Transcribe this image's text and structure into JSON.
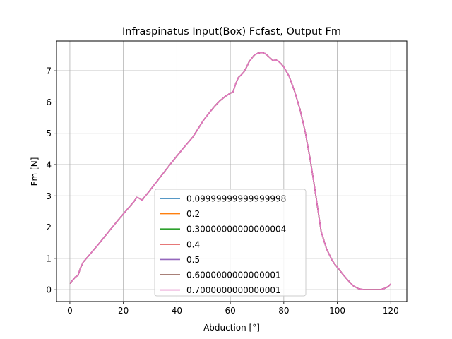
{
  "chart_data": {
    "type": "line",
    "title": "Infraspinatus Input(Box) Fcfast, Output Fm",
    "xlabel": "Abduction [°]",
    "ylabel": "Fm [N]",
    "xlim": [
      -5,
      126
    ],
    "ylim": [
      -0.38,
      7.95
    ],
    "x_ticks": [
      0,
      20,
      40,
      60,
      80,
      100,
      120
    ],
    "y_ticks": [
      0,
      1,
      2,
      3,
      4,
      5,
      6,
      7
    ],
    "grid": true,
    "legend_position": "lower center",
    "x": [
      0,
      1,
      2,
      3,
      4,
      5,
      6,
      8,
      10,
      12,
      14,
      16,
      18,
      20,
      22,
      24,
      25,
      26,
      27,
      28,
      30,
      32,
      34,
      36,
      38,
      40,
      42,
      44,
      46,
      48,
      50,
      52,
      54,
      56,
      58,
      60,
      61,
      62,
      63,
      64,
      65,
      66,
      67,
      68,
      69,
      70,
      71,
      72,
      73,
      74,
      75,
      76,
      77,
      78,
      79,
      80,
      82,
      84,
      86,
      88,
      90,
      92,
      94,
      96,
      98,
      99,
      100,
      102,
      104,
      106,
      108,
      110,
      112,
      114,
      116,
      118,
      119,
      120
    ],
    "values": [
      0.2,
      0.3,
      0.4,
      0.45,
      0.7,
      0.88,
      0.98,
      1.18,
      1.38,
      1.59,
      1.8,
      2.01,
      2.22,
      2.42,
      2.62,
      2.82,
      2.95,
      2.92,
      2.86,
      2.97,
      3.18,
      3.4,
      3.62,
      3.84,
      4.06,
      4.27,
      4.48,
      4.68,
      4.88,
      5.15,
      5.42,
      5.64,
      5.85,
      6.03,
      6.17,
      6.28,
      6.32,
      6.58,
      6.78,
      6.86,
      6.95,
      7.1,
      7.28,
      7.4,
      7.5,
      7.55,
      7.57,
      7.58,
      7.55,
      7.48,
      7.4,
      7.32,
      7.35,
      7.3,
      7.22,
      7.12,
      6.82,
      6.35,
      5.78,
      5.05,
      4.1,
      3.0,
      1.85,
      1.3,
      0.95,
      0.82,
      0.72,
      0.5,
      0.3,
      0.12,
      0.03,
      0.0,
      0.0,
      0.0,
      0.0,
      0.05,
      0.1,
      0.18
    ],
    "series": [
      {
        "name": "0.09999999999999998",
        "color": "#1f77b4"
      },
      {
        "name": "0.2",
        "color": "#ff7f0e"
      },
      {
        "name": "0.30000000000000004",
        "color": "#2ca02c"
      },
      {
        "name": "0.4",
        "color": "#d62728"
      },
      {
        "name": "0.5",
        "color": "#9467bd"
      },
      {
        "name": "0.6000000000000001",
        "color": "#8c564b"
      },
      {
        "name": "0.7000000000000001",
        "color": "#e377c2"
      }
    ]
  }
}
